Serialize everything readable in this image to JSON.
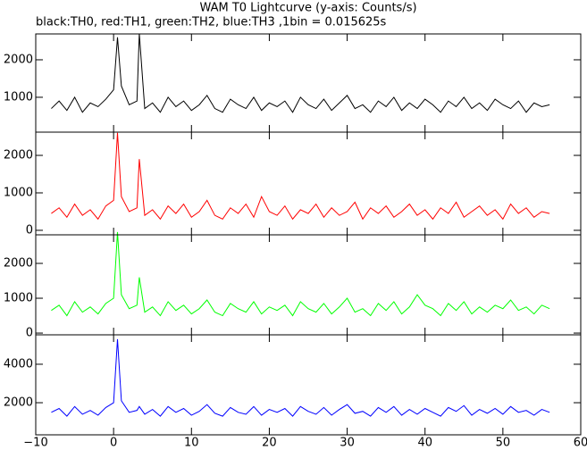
{
  "chart_data": [
    {
      "type": "line",
      "title": "WAM T0 Lightcurve (y-axis: Counts/s)",
      "subtitle": "black:TH0, red:TH1, green:TH2, blue:TH3 ,1bin = 0.015625s",
      "x": [
        -8,
        -7,
        -6,
        -5,
        -4,
        -3,
        -2,
        -1,
        0,
        0.5,
        1,
        2,
        3,
        3.3,
        4,
        5,
        6,
        7,
        8,
        9,
        10,
        11,
        12,
        13,
        14,
        15,
        16,
        17,
        18,
        19,
        20,
        21,
        22,
        23,
        24,
        25,
        26,
        27,
        28,
        29,
        30,
        31,
        32,
        33,
        34,
        35,
        36,
        37,
        38,
        39,
        40,
        41,
        42,
        43,
        44,
        45,
        46,
        47,
        48,
        49,
        50,
        51,
        52,
        53,
        54,
        55,
        56
      ],
      "series": [
        {
          "name": "TH0",
          "color": "#000000",
          "values": [
            700,
            900,
            650,
            1000,
            600,
            850,
            750,
            950,
            1200,
            2600,
            1300,
            800,
            900,
            2700,
            700,
            850,
            600,
            1000,
            750,
            900,
            650,
            800,
            1050,
            700,
            600,
            950,
            800,
            700,
            1000,
            650,
            850,
            750,
            900,
            600,
            1000,
            800,
            700,
            950,
            650,
            850,
            1050,
            700,
            800,
            600,
            900,
            750,
            1000,
            650,
            850,
            700,
            950,
            800,
            600,
            900,
            750,
            1000,
            700,
            850,
            650,
            950,
            800,
            700,
            900,
            600,
            850,
            750,
            800
          ]
        }
      ],
      "xlim": [
        -10,
        60
      ],
      "ylim": [
        70,
        2690
      ],
      "yticks": [
        1000,
        2000
      ]
    },
    {
      "type": "line",
      "x": [
        -8,
        -7,
        -6,
        -5,
        -4,
        -3,
        -2,
        -1,
        0,
        0.5,
        1,
        2,
        3,
        3.3,
        4,
        5,
        6,
        7,
        8,
        9,
        10,
        11,
        12,
        13,
        14,
        15,
        16,
        17,
        18,
        19,
        20,
        21,
        22,
        23,
        24,
        25,
        26,
        27,
        28,
        29,
        30,
        31,
        32,
        33,
        34,
        35,
        36,
        37,
        38,
        39,
        40,
        41,
        42,
        43,
        44,
        45,
        46,
        47,
        48,
        49,
        50,
        51,
        52,
        53,
        54,
        55,
        56
      ],
      "series": [
        {
          "name": "TH1",
          "color": "#ff0000",
          "values": [
            450,
            600,
            350,
            700,
            400,
            550,
            300,
            650,
            800,
            2600,
            900,
            500,
            600,
            1900,
            400,
            550,
            300,
            650,
            450,
            700,
            350,
            500,
            800,
            400,
            300,
            600,
            450,
            700,
            350,
            900,
            500,
            400,
            650,
            300,
            550,
            450,
            700,
            350,
            600,
            400,
            500,
            750,
            300,
            600,
            450,
            650,
            350,
            500,
            700,
            400,
            550,
            300,
            600,
            450,
            750,
            350,
            500,
            650,
            400,
            550,
            300,
            700,
            450,
            600,
            350,
            500,
            450
          ]
        }
      ],
      "xlim": [
        -10,
        60
      ],
      "ylim": [
        -120,
        2620
      ],
      "yticks": [
        0,
        1000,
        2000
      ]
    },
    {
      "type": "line",
      "x": [
        -8,
        -7,
        -6,
        -5,
        -4,
        -3,
        -2,
        -1,
        0,
        0.5,
        1,
        2,
        3,
        3.3,
        4,
        5,
        6,
        7,
        8,
        9,
        10,
        11,
        12,
        13,
        14,
        15,
        16,
        17,
        18,
        19,
        20,
        21,
        22,
        23,
        24,
        25,
        26,
        27,
        28,
        29,
        30,
        31,
        32,
        33,
        34,
        35,
        36,
        37,
        38,
        39,
        40,
        41,
        42,
        43,
        44,
        45,
        46,
        47,
        48,
        49,
        50,
        51,
        52,
        53,
        54,
        55,
        56
      ],
      "series": [
        {
          "name": "TH2",
          "color": "#00ff00",
          "values": [
            650,
            800,
            500,
            900,
            600,
            750,
            550,
            850,
            1000,
            2900,
            1100,
            700,
            800,
            1600,
            600,
            750,
            500,
            900,
            650,
            800,
            550,
            700,
            950,
            600,
            500,
            850,
            700,
            600,
            900,
            550,
            750,
            650,
            800,
            500,
            900,
            700,
            600,
            850,
            550,
            750,
            1000,
            600,
            700,
            500,
            850,
            650,
            900,
            550,
            750,
            1100,
            800,
            700,
            500,
            850,
            650,
            900,
            550,
            750,
            600,
            800,
            700,
            950,
            650,
            750,
            550,
            800,
            700
          ]
        }
      ],
      "xlim": [
        -10,
        60
      ],
      "ylim": [
        -50,
        2820
      ],
      "yticks": [
        0,
        1000,
        2000
      ]
    },
    {
      "type": "line",
      "x": [
        -8,
        -7,
        -6,
        -5,
        -4,
        -3,
        -2,
        -1,
        0,
        0.5,
        1,
        2,
        3,
        3.3,
        4,
        5,
        6,
        7,
        8,
        9,
        10,
        11,
        12,
        13,
        14,
        15,
        16,
        17,
        18,
        19,
        20,
        21,
        22,
        23,
        24,
        25,
        26,
        27,
        28,
        29,
        30,
        31,
        32,
        33,
        34,
        35,
        36,
        37,
        38,
        39,
        40,
        41,
        42,
        43,
        44,
        45,
        46,
        47,
        48,
        49,
        50,
        51,
        52,
        53,
        54,
        55,
        56
      ],
      "series": [
        {
          "name": "TH3",
          "color": "#0000ff",
          "values": [
            1500,
            1700,
            1300,
            1800,
            1400,
            1600,
            1350,
            1750,
            2000,
            5300,
            2100,
            1500,
            1600,
            1800,
            1400,
            1650,
            1300,
            1800,
            1500,
            1700,
            1350,
            1550,
            1900,
            1450,
            1300,
            1750,
            1500,
            1400,
            1800,
            1350,
            1650,
            1500,
            1700,
            1300,
            1800,
            1550,
            1400,
            1750,
            1350,
            1650,
            1900,
            1450,
            1550,
            1300,
            1750,
            1500,
            1800,
            1350,
            1650,
            1400,
            1700,
            1500,
            1300,
            1750,
            1550,
            1850,
            1350,
            1650,
            1450,
            1700,
            1400,
            1800,
            1500,
            1600,
            1350,
            1650,
            1500
          ]
        }
      ],
      "xlim": [
        -10,
        60
      ],
      "ylim": [
        330,
        5530
      ],
      "yticks": [
        2000,
        4000
      ],
      "xticks": [
        {
          "value": -10,
          "label": "−10"
        },
        0,
        10,
        20,
        30,
        40,
        50,
        60
      ]
    }
  ]
}
